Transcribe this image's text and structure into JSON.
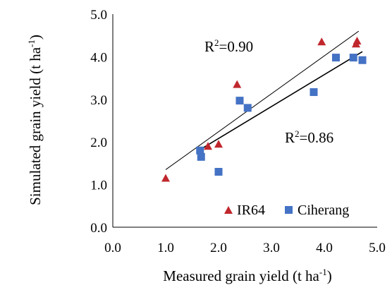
{
  "chart_data": {
    "type": "scatter",
    "xlabel": "Measured grain yield (t ha",
    "xlabel_sup": "-1",
    "xlabel_end": ")",
    "ylabel": "Simulated grain yield  (t ha",
    "ylabel_sup": "-1",
    "ylabel_end": ")",
    "xlim": [
      0,
      5
    ],
    "ylim": [
      0,
      5
    ],
    "x_ticks": [
      "0.0",
      "1.0",
      "2.0",
      "3.0",
      "4.0",
      "5.0"
    ],
    "y_ticks": [
      "0.0",
      "1.0",
      "2.0",
      "3.0",
      "4.0",
      "5.0"
    ],
    "grid": false,
    "legend_position": "bottom-right",
    "series": [
      {
        "name": "IR64",
        "marker": "triangle",
        "color": "#c0272d",
        "points": [
          {
            "x": 1.0,
            "y": 1.15
          },
          {
            "x": 1.8,
            "y": 1.9
          },
          {
            "x": 2.0,
            "y": 1.95
          },
          {
            "x": 2.35,
            "y": 3.35
          },
          {
            "x": 3.95,
            "y": 4.35
          },
          {
            "x": 4.6,
            "y": 4.3
          },
          {
            "x": 4.62,
            "y": 4.37
          }
        ],
        "trend": {
          "x1": 1.0,
          "y1": 1.35,
          "x2": 4.65,
          "y2": 4.6
        },
        "r2_label": "R",
        "r2_value": "=0.90"
      },
      {
        "name": "Ciherang",
        "marker": "square",
        "color": "#4472c4",
        "points": [
          {
            "x": 1.65,
            "y": 1.8
          },
          {
            "x": 1.67,
            "y": 1.65
          },
          {
            "x": 2.0,
            "y": 1.3
          },
          {
            "x": 2.4,
            "y": 2.97
          },
          {
            "x": 2.55,
            "y": 2.8
          },
          {
            "x": 3.8,
            "y": 3.17
          },
          {
            "x": 4.22,
            "y": 3.98
          },
          {
            "x": 4.55,
            "y": 3.98
          },
          {
            "x": 4.72,
            "y": 3.92
          }
        ],
        "trend": {
          "x1": 1.65,
          "y1": 1.82,
          "x2": 4.72,
          "y2": 4.12
        },
        "r2_label": "R",
        "r2_value": "=0.86"
      }
    ],
    "r2_sup": "2",
    "line_color": "#000000"
  }
}
